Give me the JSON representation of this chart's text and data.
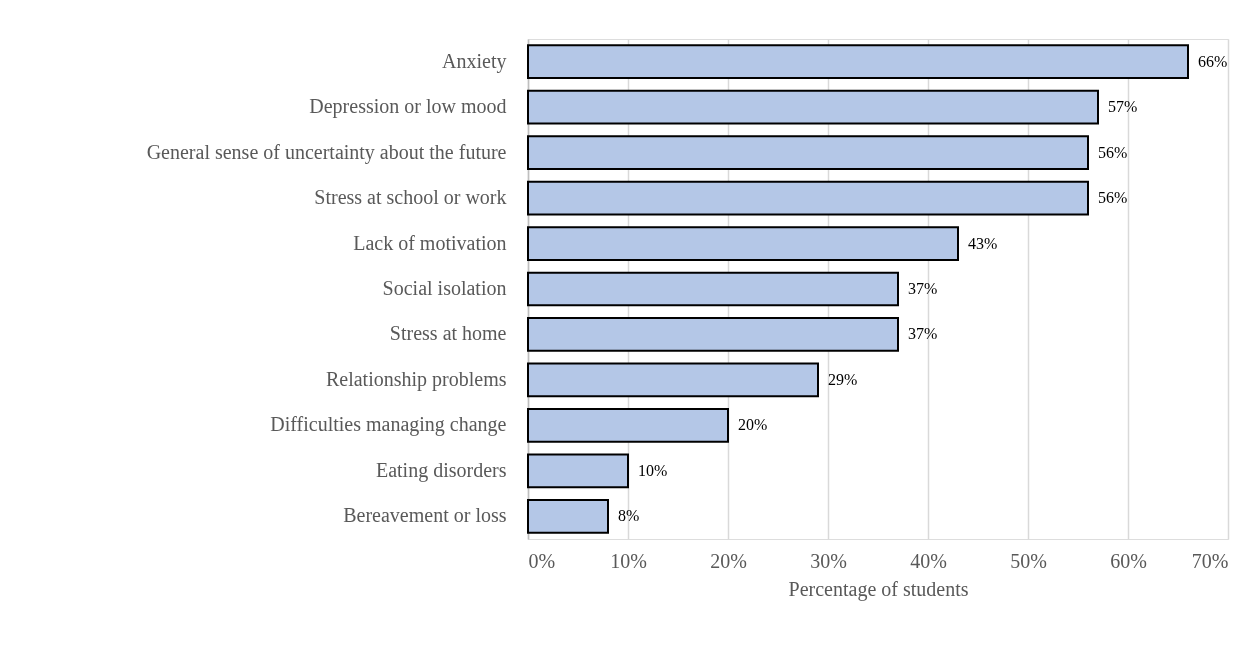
{
  "chart_data": {
    "type": "bar",
    "orientation": "horizontal",
    "xlabel": "Percentage of students",
    "categories": [
      "Anxiety",
      "Depression or low mood",
      "General sense of uncertainty about the future",
      "Stress at school or work",
      "Lack of motivation",
      "Social isolation",
      "Stress at home",
      "Relationship problems",
      "Difficulties managing change",
      "Eating disorders",
      "Bereavement or loss"
    ],
    "values": [
      66,
      57,
      56,
      56,
      43,
      37,
      37,
      29,
      20,
      10,
      8
    ],
    "value_labels": [
      "66%",
      "57%",
      "56%",
      "56%",
      "43%",
      "37%",
      "37%",
      "29%",
      "20%",
      "10%",
      "8%"
    ],
    "color": "#b4c7e7",
    "xlim": [
      0,
      70
    ],
    "xticks": [
      {
        "value": 0,
        "label": "0%"
      },
      {
        "value": 10,
        "label": "10%"
      },
      {
        "value": 20,
        "label": "20%"
      },
      {
        "value": 30,
        "label": "30%"
      },
      {
        "value": 40,
        "label": "40%"
      },
      {
        "value": 50,
        "label": "50%"
      },
      {
        "value": 60,
        "label": "60%"
      },
      {
        "value": 70,
        "label": "70%"
      }
    ],
    "grid": "x"
  }
}
